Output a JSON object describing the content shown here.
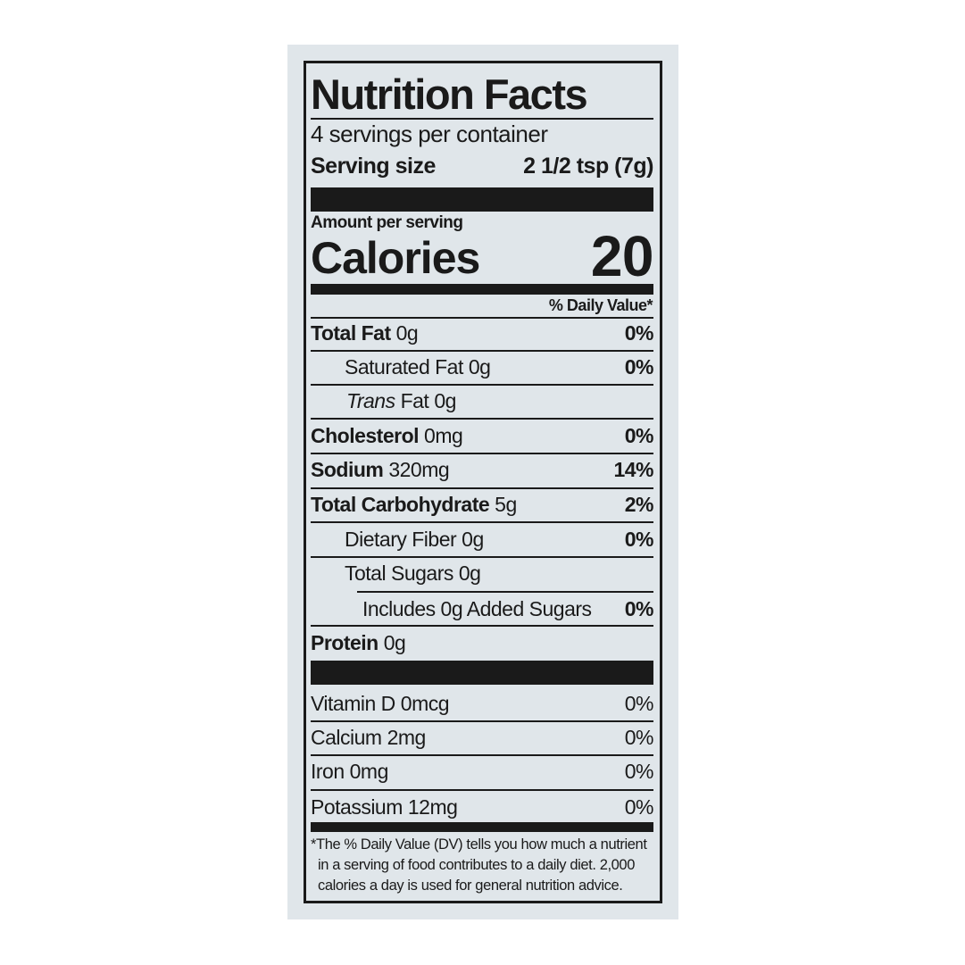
{
  "title": "Nutrition Facts",
  "servings": "4 servings per container",
  "serving_size": {
    "label": "Serving size",
    "value": "2 1/2 tsp (7g)"
  },
  "amount_per_serving": "Amount per serving",
  "calories": {
    "label": "Calories",
    "value": 20
  },
  "daily_value_header": "% Daily Value*",
  "nutrients": [
    {
      "label": "Total Fat",
      "amount": "0g",
      "dv": "0%"
    },
    {
      "label": "Saturated Fat",
      "amount": "0g",
      "dv": "0%"
    },
    {
      "label_italic": "Trans",
      "label": "Fat",
      "amount": "0g"
    },
    {
      "label": "Cholesterol",
      "amount": "0mg",
      "dv": "0%"
    },
    {
      "label": "Sodium",
      "amount": "320mg",
      "dv": "14%"
    },
    {
      "label": "Total Carbohydrate",
      "amount": "5g",
      "dv": "2%"
    },
    {
      "label": "Dietary Fiber",
      "amount": "0g",
      "dv": "0%"
    },
    {
      "label": "Total Sugars",
      "amount": "0g"
    },
    {
      "label": "Includes 0g Added Sugars",
      "dv": "0%"
    },
    {
      "label": "Protein",
      "amount": "0g"
    }
  ],
  "vitamins": [
    {
      "label": "Vitamin D",
      "amount": "0mcg",
      "dv": "0%"
    },
    {
      "label": "Calcium",
      "amount": "2mg",
      "dv": "0%"
    },
    {
      "label": "Iron",
      "amount": "0mg",
      "dv": "0%"
    },
    {
      "label": "Potassium",
      "amount": "12mg",
      "dv": "0%"
    }
  ],
  "footnote": [
    "*The % Daily Value (DV) tells you how much a nutrient",
    "in a serving of food contributes to a daily diet. 2,000",
    "calories a day is used for general nutrition advice."
  ]
}
